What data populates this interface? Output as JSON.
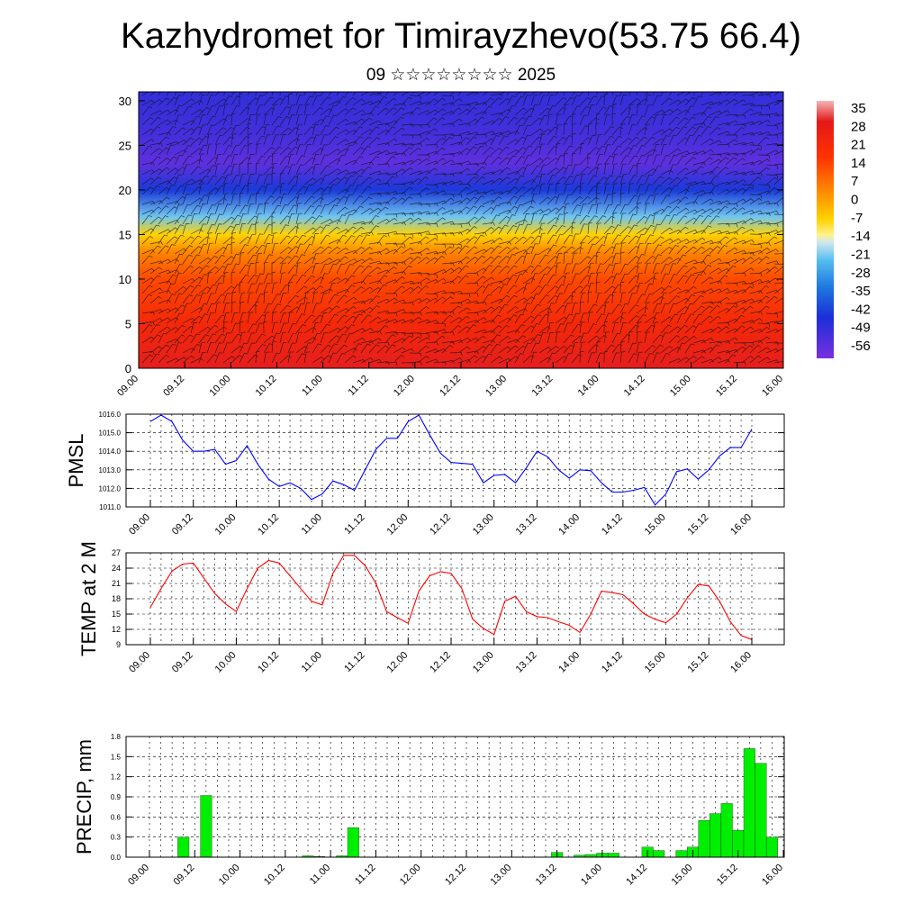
{
  "title": "Kazhydromet for Timirayzhevo(53.75 66.4)",
  "subtitle": "09 ☆☆☆☆☆☆☆☆ 2025",
  "chart_data": [
    {
      "type": "heatmap",
      "title": "",
      "xlabel": "",
      "ylabel": "",
      "x_ticks": [
        "09.00",
        "09.12",
        "10.00",
        "10.12",
        "11.00",
        "11.12",
        "12.00",
        "12.12",
        "13.00",
        "13.12",
        "14.00",
        "14.12",
        "15.00",
        "15.12",
        "16.00"
      ],
      "y_ticks": [
        "0",
        "5",
        "10",
        "15",
        "20",
        "25",
        "30"
      ],
      "ylim": [
        0,
        31
      ],
      "colorbar_labels": [
        "35",
        "28",
        "21",
        "14",
        "7",
        "0",
        "-7",
        "-14",
        "-21",
        "-28",
        "-35",
        "-42",
        "-49",
        "-56"
      ],
      "colorbar_range": [
        -56,
        35
      ],
      "description_layers": "temperature field with wind barbs",
      "profile_heights": [
        0,
        5,
        10,
        13,
        15,
        17,
        20,
        23,
        26,
        31
      ],
      "profile_values": [
        28,
        20,
        12,
        4,
        -7,
        -20,
        -40,
        -52,
        -48,
        -45
      ]
    },
    {
      "type": "line",
      "ylabel": "PMSL",
      "x_ticks": [
        "09.00",
        "09.12",
        "10.00",
        "10.12",
        "11.00",
        "11.12",
        "12.00",
        "12.12",
        "13.00",
        "13.12",
        "14.00",
        "14.12",
        "15.00",
        "15.12",
        "16.00"
      ],
      "y_ticks": [
        "1011.0",
        "1012.0",
        "1013.0",
        "1014.0",
        "1015.0",
        "1016.0"
      ],
      "ylim": [
        1011,
        1016
      ],
      "color": "#0000ff",
      "series": [
        {
          "values": [
            1015.6,
            1015.95,
            1015.6,
            1014.6,
            1014.0,
            1014.0,
            1014.1,
            1013.3,
            1013.5,
            1014.3,
            1013.3,
            1012.5,
            1012.1,
            1012.3,
            1012.0,
            1011.4,
            1011.7,
            1012.4,
            1012.2,
            1011.9,
            1013.0,
            1014.1,
            1014.7,
            1014.7,
            1015.6,
            1015.95,
            1014.9,
            1013.9,
            1013.4,
            1013.35,
            1013.3,
            1012.3,
            1012.7,
            1012.75,
            1012.3,
            1013.1,
            1014.0,
            1013.7,
            1013.0,
            1012.55,
            1013.0,
            1012.95,
            1012.3,
            1011.8,
            1011.8,
            1011.9,
            1012.05,
            1011.1,
            1011.7,
            1012.9,
            1013.05,
            1012.5,
            1013.0,
            1013.75,
            1014.2,
            1014.2,
            1015.2
          ]
        }
      ],
      "x_start_index": 0,
      "x_step_hours": 3
    },
    {
      "type": "line",
      "ylabel": "TEMP at 2 M",
      "x_ticks": [
        "09.00",
        "09.12",
        "10.00",
        "10.12",
        "11.00",
        "11.12",
        "12.00",
        "12.12",
        "13.00",
        "13.12",
        "14.00",
        "14.12",
        "15.00",
        "15.12",
        "16.00"
      ],
      "y_ticks": [
        "9",
        "12",
        "15",
        "18",
        "21",
        "24",
        "27"
      ],
      "ylim": [
        9,
        27
      ],
      "color": "#ff0000",
      "series": [
        {
          "values": [
            16.3,
            20.0,
            23.4,
            24.8,
            25.0,
            22.0,
            19.0,
            17.0,
            15.5,
            20.0,
            24.0,
            25.5,
            25.0,
            22.5,
            20.0,
            17.5,
            16.8,
            23.0,
            26.5,
            26.5,
            24.5,
            21.0,
            15.5,
            14.3,
            13.2,
            19.5,
            22.5,
            23.3,
            23.0,
            20.0,
            14.0,
            12.2,
            11.0,
            17.5,
            18.5,
            15.5,
            14.5,
            14.3,
            13.5,
            12.8,
            11.4,
            15.0,
            19.5,
            19.2,
            18.8,
            17.0,
            15.0,
            14.0,
            13.3,
            15.0,
            18.2,
            20.8,
            20.5,
            17.5,
            13.5,
            10.8,
            10.0
          ]
        }
      ],
      "x_start_index": 0,
      "x_step_hours": 3
    },
    {
      "type": "bar",
      "ylabel": "PRECIP, mm",
      "x_ticks": [
        "09.00",
        "09.12",
        "10.00",
        "10.12",
        "11.00",
        "11.12",
        "12.00",
        "12.12",
        "13.00",
        "13.12",
        "14.00",
        "14.12",
        "15.00",
        "15.12",
        "16.00"
      ],
      "y_ticks": [
        "0.0",
        "0.3",
        "0.6",
        "0.9",
        "1.2",
        "1.5",
        "1.8"
      ],
      "ylim": [
        0,
        1.8
      ],
      "color": "#00ee00",
      "values": [
        0,
        0,
        0,
        0.3,
        0,
        0.92,
        0,
        0,
        0,
        0,
        0,
        0,
        0,
        0,
        0.02,
        0.01,
        0,
        0.02,
        0.44,
        0,
        0,
        0,
        0,
        0,
        0,
        0,
        0,
        0,
        0,
        0,
        0,
        0,
        0,
        0,
        0,
        0,
        0.07,
        0,
        0.03,
        0.04,
        0.06,
        0.06,
        0,
        0,
        0.15,
        0.1,
        0,
        0.1,
        0.15,
        0.55,
        0.65,
        0.8,
        0.4,
        1.62,
        1.4,
        0.3,
        0,
        0
      ],
      "x_step_hours": 3
    }
  ]
}
